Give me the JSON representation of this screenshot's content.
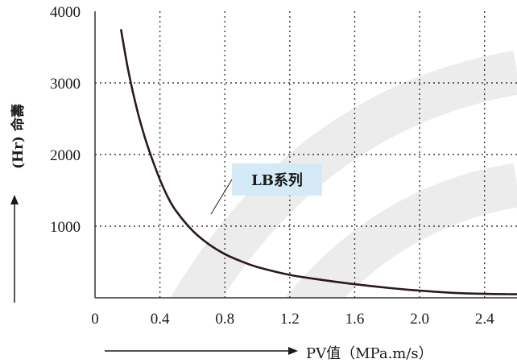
{
  "chart_data": {
    "type": "line",
    "xlabel": "PV值（MPa.m/s）",
    "ylabel": "(Hr) 命壽",
    "y_tick_labels": [
      "4000",
      "3000",
      "2000",
      "1000"
    ],
    "x_tick_labels": [
      "0",
      "0.4",
      "0.8",
      "1.2",
      "1.6",
      "2.0",
      "2.4"
    ],
    "x_ticks": [
      0,
      0.4,
      0.8,
      1.2,
      1.6,
      2.0,
      2.4
    ],
    "xlim": [
      0,
      2.6
    ],
    "ylim": [
      0,
      4000
    ],
    "grid": "dotted",
    "series": [
      {
        "name": "LB系列",
        "x": [
          0.16,
          0.2,
          0.25,
          0.3,
          0.35,
          0.4,
          0.45,
          0.5,
          0.6,
          0.7,
          0.8,
          0.9,
          1.0,
          1.2,
          1.4,
          1.6,
          1.8,
          2.0,
          2.2,
          2.4,
          2.6
        ],
        "y": [
          3750,
          3230,
          2710,
          2290,
          1950,
          1650,
          1400,
          1210,
          940,
          750,
          610,
          510,
          430,
          320,
          250,
          190,
          140,
          100,
          70,
          55,
          50
        ]
      }
    ],
    "annotation": "LB系列"
  }
}
